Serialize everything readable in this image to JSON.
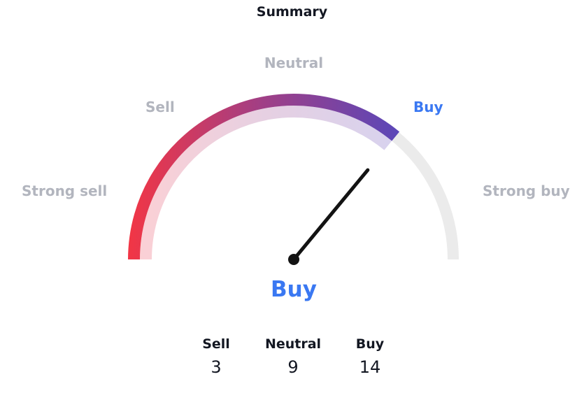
{
  "chart_data": {
    "type": "gauge",
    "title": "Summary",
    "labels": [
      "Strong sell",
      "Sell",
      "Neutral",
      "Buy",
      "Strong buy"
    ],
    "active_label": "Buy",
    "value_fraction": 0.72,
    "result": "Buy",
    "counts": [
      {
        "label": "Sell",
        "value": "3"
      },
      {
        "label": "Neutral",
        "value": "9"
      },
      {
        "label": "Buy",
        "value": "14"
      }
    ],
    "colors": {
      "sell": "#f23645",
      "buy": "#5b47b8",
      "sell_light": "#fbd0d5",
      "buy_light": "#d8d2ee",
      "track": "#ebebeb",
      "active_text": "#3a78f2",
      "inactive_text": "#b2b5be",
      "needle": "#131313"
    }
  }
}
